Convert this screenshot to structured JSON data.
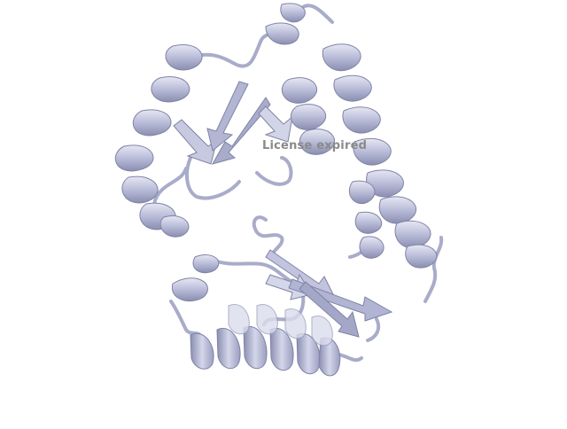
{
  "viewer": {
    "background": "#ffffff",
    "structure_color": "#b9bcd8",
    "structure_shade": "#7f83a6",
    "watermark_text": "License expired",
    "watermark_color": "#8a8a8a"
  }
}
